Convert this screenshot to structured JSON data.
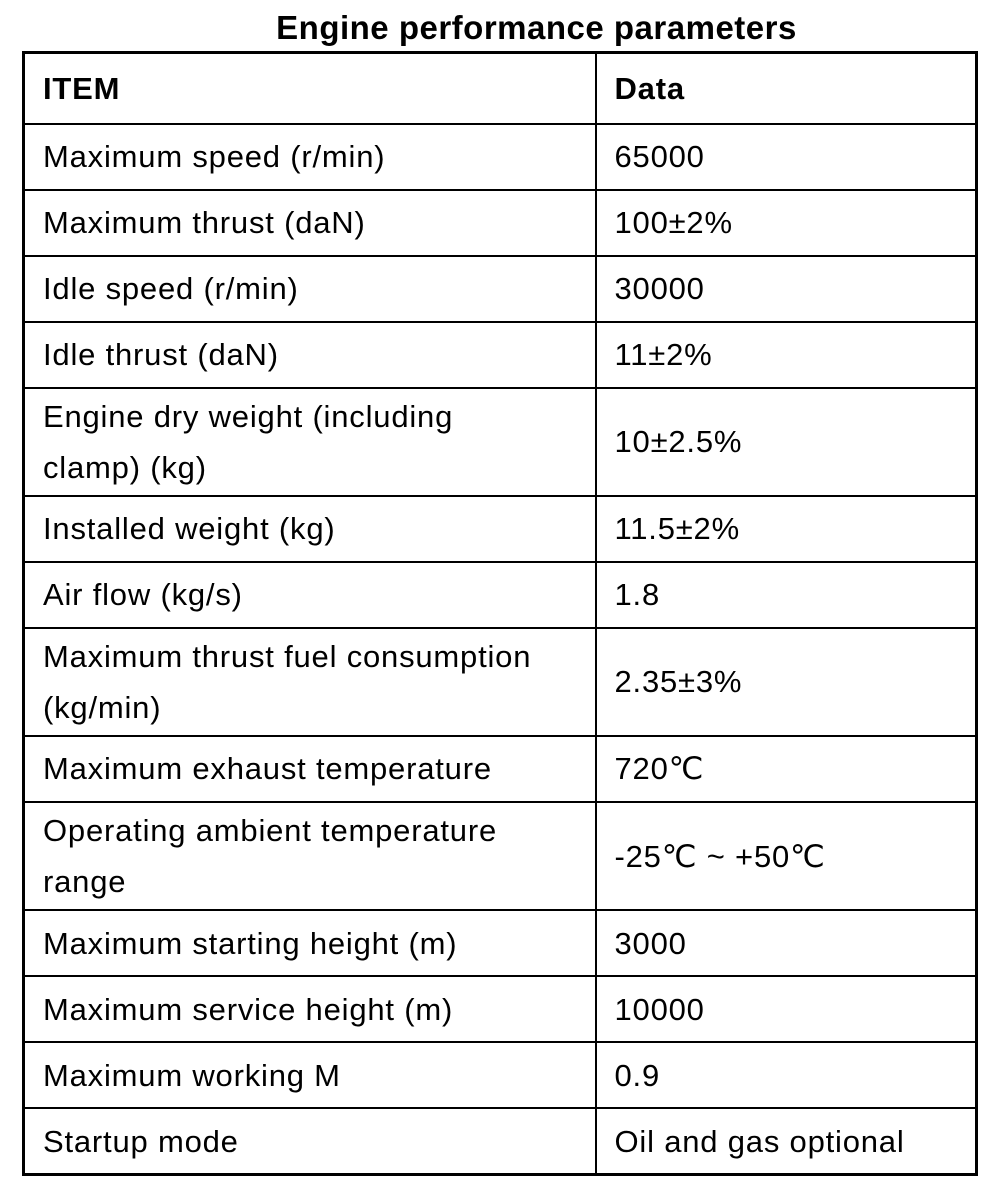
{
  "title": "Engine performance parameters",
  "table": {
    "header": {
      "item": "ITEM",
      "data": "Data"
    },
    "rows": [
      {
        "item": "Maximum speed (r/min)",
        "data": "65000"
      },
      {
        "item": "Maximum thrust (daN)",
        "data": "100±2%"
      },
      {
        "item": "Idle speed (r/min)",
        "data": "30000"
      },
      {
        "item": "Idle thrust (daN)",
        "data": "11±2%"
      },
      {
        "item": "Engine dry weight (including clamp) (kg)",
        "data": "10±2.5%"
      },
      {
        "item": "Installed weight (kg)",
        "data": "11.5±2%"
      },
      {
        "item": "Air flow (kg/s)",
        "data": "1.8"
      },
      {
        "item": "Maximum thrust fuel consumption (kg/min)",
        "data": "2.35±3%"
      },
      {
        "item": "Maximum exhaust temperature",
        "data": "720℃"
      },
      {
        "item": "Operating ambient temperature range",
        "data": "-25℃ ~ +50℃"
      },
      {
        "item": "Maximum starting height (m)",
        "data": "3000"
      },
      {
        "item": "Maximum service height (m)",
        "data": "10000"
      },
      {
        "item": "Maximum working M",
        "data": "0.9"
      },
      {
        "item": "Startup mode",
        "data": "Oil and gas optional"
      }
    ]
  },
  "chart_data": {
    "type": "table",
    "title": "Engine performance parameters",
    "columns": [
      "ITEM",
      "Data"
    ],
    "rows": [
      [
        "Maximum speed (r/min)",
        "65000"
      ],
      [
        "Maximum thrust (daN)",
        "100±2%"
      ],
      [
        "Idle speed (r/min)",
        "30000"
      ],
      [
        "Idle thrust (daN)",
        "11±2%"
      ],
      [
        "Engine dry weight (including clamp) (kg)",
        "10±2.5%"
      ],
      [
        "Installed weight (kg)",
        "11.5±2%"
      ],
      [
        "Air flow (kg/s)",
        "1.8"
      ],
      [
        "Maximum thrust fuel consumption (kg/min)",
        "2.35±3%"
      ],
      [
        "Maximum exhaust temperature",
        "720℃"
      ],
      [
        "Operating ambient temperature range",
        "-25℃ ~ +50℃"
      ],
      [
        "Maximum starting height (m)",
        "3000"
      ],
      [
        "Maximum service height (m)",
        "10000"
      ],
      [
        "Maximum working M",
        "0.9"
      ],
      [
        "Startup mode",
        "Oil and gas optional"
      ]
    ]
  }
}
